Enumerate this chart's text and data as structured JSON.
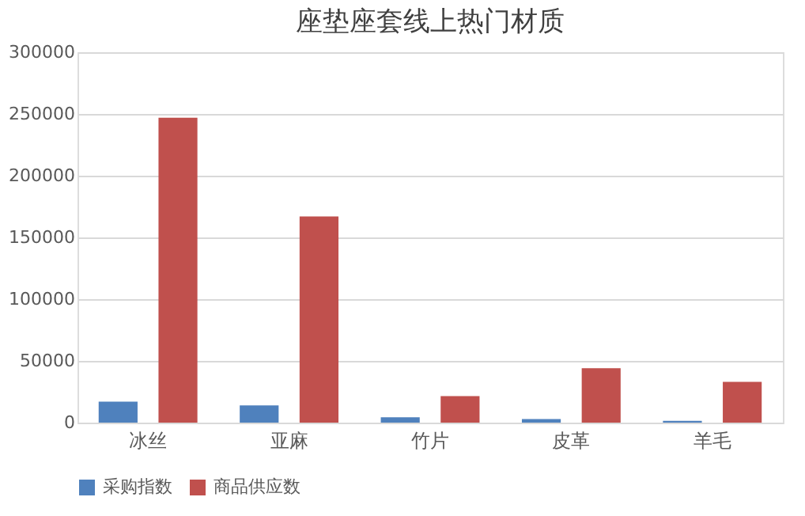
{
  "chart_data": {
    "type": "bar",
    "title": "座垫座套线上热门材质",
    "categories": [
      "冰丝",
      "亚麻",
      "竹片",
      "皮革",
      "羊毛"
    ],
    "series": [
      {
        "name": "采购指数",
        "color": "#4f81bd",
        "values": [
          17000,
          14000,
          4300,
          2900,
          1400
        ]
      },
      {
        "name": "商品供应数",
        "color": "#c0504d",
        "values": [
          247000,
          167000,
          21500,
          44000,
          33000
        ]
      }
    ],
    "ylim": [
      0,
      300000
    ],
    "yticks": [
      0,
      50000,
      100000,
      150000,
      200000,
      250000,
      300000
    ],
    "grid": "y",
    "legend": "bottom"
  }
}
